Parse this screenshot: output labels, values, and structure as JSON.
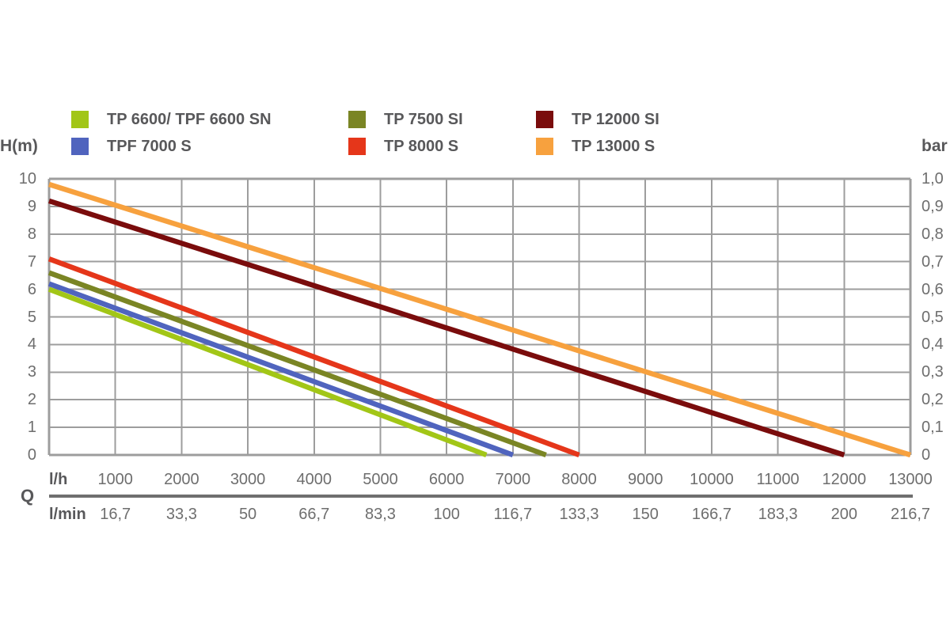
{
  "chart_data": {
    "type": "line",
    "legend_position": "top",
    "grid": true,
    "colors": {
      "grid": "#9d9d9d",
      "plot_border": "#9d9d9d",
      "axis_divider": "#6f6f6f",
      "tick_text": "#6e6e6e",
      "label_text": "#58585a"
    },
    "x_axis": {
      "label": "Q",
      "range": [
        0,
        13000
      ],
      "tick_values": [
        1000,
        2000,
        3000,
        4000,
        5000,
        6000,
        7000,
        8000,
        9000,
        10000,
        11000,
        12000,
        13000
      ],
      "rows": [
        {
          "label": "l/h",
          "ticks": [
            "1000",
            "2000",
            "3000",
            "4000",
            "5000",
            "6000",
            "7000",
            "8000",
            "9000",
            "10000",
            "11000",
            "12000",
            "13000"
          ]
        },
        {
          "label": "l/min",
          "ticks": [
            "16,7",
            "33,3",
            "50",
            "66,7",
            "83,3",
            "100",
            "116,7",
            "133,3",
            "150",
            "166,7",
            "183,3",
            "200",
            "216,7"
          ]
        }
      ]
    },
    "y_axis_left": {
      "label": "H(m)",
      "range": [
        0,
        10
      ],
      "tick_values": [
        0,
        1,
        2,
        3,
        4,
        5,
        6,
        7,
        8,
        9,
        10
      ],
      "tick_labels": [
        "0",
        "1",
        "2",
        "3",
        "4",
        "5",
        "6",
        "7",
        "8",
        "9",
        "10"
      ]
    },
    "y_axis_right": {
      "label": "bar",
      "range": [
        0,
        1.0
      ],
      "tick_values": [
        0,
        1,
        2,
        3,
        4,
        5,
        6,
        7,
        8,
        9,
        10
      ],
      "tick_labels": [
        "0",
        "0,1",
        "0,2",
        "0,3",
        "0,4",
        "0,5",
        "0,6",
        "0,7",
        "0,8",
        "0,9",
        "1,0"
      ]
    },
    "series": [
      {
        "name": "TP 6600/ TPF 6600 SN",
        "color": "#a2c617",
        "points": [
          [
            0,
            6.0
          ],
          [
            6600,
            0
          ]
        ]
      },
      {
        "name": "TPF 7000 S",
        "color": "#5064be",
        "points": [
          [
            0,
            6.2
          ],
          [
            7000,
            0
          ]
        ]
      },
      {
        "name": "TP 7500 SI",
        "color": "#7a8524",
        "points": [
          [
            0,
            6.6
          ],
          [
            7500,
            0
          ]
        ]
      },
      {
        "name": "TP 8000 S",
        "color": "#e5361a",
        "points": [
          [
            0,
            7.1
          ],
          [
            8000,
            0
          ]
        ]
      },
      {
        "name": "TP 12000 SI",
        "color": "#7a0c0c",
        "points": [
          [
            0,
            9.2
          ],
          [
            12000,
            0
          ]
        ]
      },
      {
        "name": "TP 13000 S",
        "color": "#f7a13e",
        "points": [
          [
            0,
            9.8
          ],
          [
            13000,
            0
          ]
        ]
      }
    ],
    "legend": {
      "items": [
        {
          "series_index": 0
        },
        {
          "series_index": 2
        },
        {
          "series_index": 4
        },
        {
          "series_index": 1
        },
        {
          "series_index": 3
        },
        {
          "series_index": 5
        }
      ]
    }
  }
}
